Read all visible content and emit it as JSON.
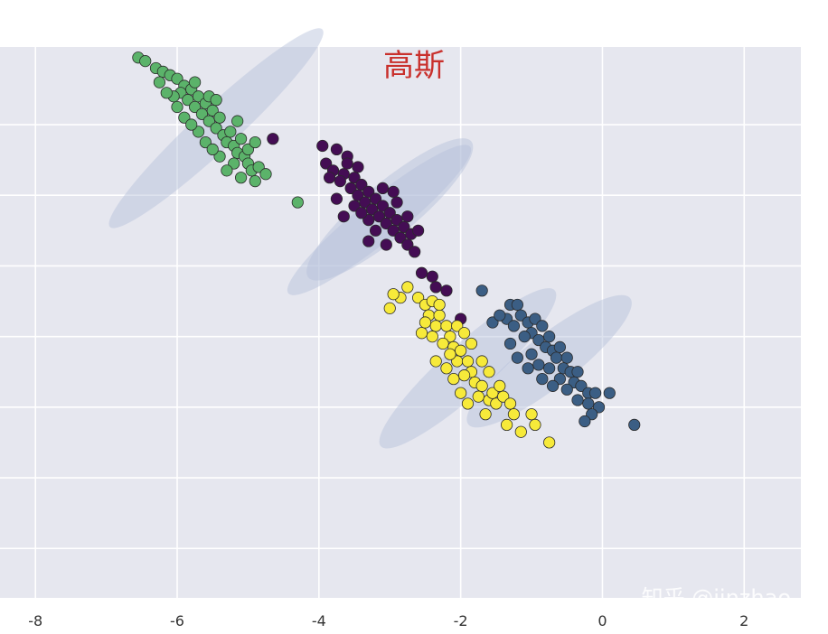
{
  "chart_data": {
    "type": "scatter",
    "title": "高斯",
    "xlabel": "",
    "ylabel": "",
    "xlim": [
      -8.5,
      2.8
    ],
    "ylim": [
      -5.2,
      2.6
    ],
    "x_ticks": [
      -8,
      -6,
      -4,
      -2,
      0,
      2
    ],
    "x_tick_labels": [
      "-8",
      "-6",
      "-4",
      "-2",
      "0",
      "2"
    ],
    "y_grid": [
      -4.5,
      -3.5,
      -2.5,
      -1.5,
      -0.5,
      0.5,
      1.5
    ],
    "grid": true,
    "background": "#e6e7ef",
    "grid_color": "#ffffff",
    "ellipse_color": "#b4bed9",
    "marker_edge_color": "#2a2a2a",
    "series": [
      {
        "color": "#5bb36a",
        "points": [
          [
            -6.55,
            2.45
          ],
          [
            -6.45,
            2.4
          ],
          [
            -6.3,
            2.3
          ],
          [
            -6.2,
            2.25
          ],
          [
            -6.1,
            2.2
          ],
          [
            -6.25,
            2.1
          ],
          [
            -6.0,
            2.15
          ],
          [
            -5.9,
            2.05
          ],
          [
            -5.95,
            1.95
          ],
          [
            -6.05,
            1.9
          ],
          [
            -5.8,
            2.0
          ],
          [
            -5.85,
            1.85
          ],
          [
            -5.7,
            1.9
          ],
          [
            -5.75,
            1.75
          ],
          [
            -5.6,
            1.8
          ],
          [
            -5.65,
            1.65
          ],
          [
            -5.5,
            1.7
          ],
          [
            -5.55,
            1.55
          ],
          [
            -5.4,
            1.6
          ],
          [
            -5.45,
            1.45
          ],
          [
            -5.35,
            1.35
          ],
          [
            -5.25,
            1.4
          ],
          [
            -5.3,
            1.25
          ],
          [
            -5.2,
            1.2
          ],
          [
            -5.1,
            1.3
          ],
          [
            -5.15,
            1.1
          ],
          [
            -5.05,
            1.05
          ],
          [
            -5.0,
            0.95
          ],
          [
            -4.95,
            0.85
          ],
          [
            -4.85,
            0.9
          ],
          [
            -4.75,
            0.8
          ],
          [
            -4.9,
            0.7
          ],
          [
            -5.1,
            0.75
          ],
          [
            -5.2,
            0.95
          ],
          [
            -5.4,
            1.05
          ],
          [
            -5.6,
            1.25
          ],
          [
            -5.7,
            1.4
          ],
          [
            -5.9,
            1.6
          ],
          [
            -6.0,
            1.75
          ],
          [
            -6.15,
            1.95
          ],
          [
            -5.8,
            1.5
          ],
          [
            -5.5,
            1.15
          ],
          [
            -5.3,
            0.85
          ],
          [
            -5.0,
            1.15
          ],
          [
            -4.9,
            1.25
          ],
          [
            -4.3,
            0.4
          ],
          [
            -5.55,
            1.9
          ],
          [
            -5.75,
            2.1
          ],
          [
            -5.45,
            1.85
          ],
          [
            -5.15,
            1.55
          ]
        ]
      },
      {
        "color": "#440d54",
        "points": [
          [
            -4.65,
            1.3
          ],
          [
            -3.95,
            1.2
          ],
          [
            -3.75,
            1.15
          ],
          [
            -3.6,
            1.05
          ],
          [
            -3.9,
            0.95
          ],
          [
            -3.8,
            0.85
          ],
          [
            -3.65,
            0.8
          ],
          [
            -3.5,
            0.75
          ],
          [
            -3.7,
            0.7
          ],
          [
            -3.55,
            0.6
          ],
          [
            -3.4,
            0.65
          ],
          [
            -3.45,
            0.5
          ],
          [
            -3.3,
            0.55
          ],
          [
            -3.35,
            0.4
          ],
          [
            -3.2,
            0.45
          ],
          [
            -3.25,
            0.3
          ],
          [
            -3.1,
            0.35
          ],
          [
            -3.15,
            0.2
          ],
          [
            -3.0,
            0.25
          ],
          [
            -3.05,
            0.1
          ],
          [
            -2.9,
            0.15
          ],
          [
            -2.95,
            0.0
          ],
          [
            -2.8,
            0.05
          ],
          [
            -2.85,
            -0.1
          ],
          [
            -2.7,
            -0.05
          ],
          [
            -2.75,
            -0.2
          ],
          [
            -2.65,
            -0.3
          ],
          [
            -3.6,
            0.95
          ],
          [
            -3.85,
            0.75
          ],
          [
            -3.45,
            0.9
          ],
          [
            -3.1,
            0.6
          ],
          [
            -2.9,
            0.4
          ],
          [
            -2.6,
            0.0
          ],
          [
            -3.3,
            0.15
          ],
          [
            -3.5,
            0.35
          ],
          [
            -3.2,
            0.0
          ],
          [
            -3.05,
            -0.2
          ],
          [
            -3.3,
            -0.15
          ],
          [
            -2.55,
            -0.6
          ],
          [
            -2.4,
            -0.65
          ],
          [
            -2.35,
            -0.8
          ],
          [
            -2.2,
            -0.85
          ],
          [
            -2.0,
            -1.25
          ],
          [
            -3.75,
            0.45
          ],
          [
            -3.65,
            0.2
          ],
          [
            -2.75,
            0.2
          ],
          [
            -2.95,
            0.55
          ],
          [
            -3.4,
            0.25
          ]
        ]
      },
      {
        "color": "#f7ea3a",
        "points": [
          [
            -2.75,
            -0.8
          ],
          [
            -2.85,
            -0.95
          ],
          [
            -2.6,
            -0.95
          ],
          [
            -2.5,
            -1.05
          ],
          [
            -2.4,
            -1.0
          ],
          [
            -2.45,
            -1.2
          ],
          [
            -2.3,
            -1.2
          ],
          [
            -2.35,
            -1.35
          ],
          [
            -2.2,
            -1.35
          ],
          [
            -2.55,
            -1.45
          ],
          [
            -2.15,
            -1.5
          ],
          [
            -2.25,
            -1.6
          ],
          [
            -2.1,
            -1.65
          ],
          [
            -2.0,
            -1.7
          ],
          [
            -2.05,
            -1.85
          ],
          [
            -1.9,
            -1.85
          ],
          [
            -1.85,
            -2.0
          ],
          [
            -1.95,
            -2.05
          ],
          [
            -1.8,
            -2.15
          ],
          [
            -1.7,
            -2.2
          ],
          [
            -1.75,
            -2.35
          ],
          [
            -1.6,
            -2.4
          ],
          [
            -1.5,
            -2.45
          ],
          [
            -1.55,
            -2.3
          ],
          [
            -1.4,
            -2.35
          ],
          [
            -1.3,
            -2.45
          ],
          [
            -1.25,
            -2.6
          ],
          [
            -1.0,
            -2.6
          ],
          [
            -0.95,
            -2.75
          ],
          [
            -1.35,
            -2.75
          ],
          [
            -1.15,
            -2.85
          ],
          [
            -0.75,
            -3.0
          ],
          [
            -2.35,
            -1.85
          ],
          [
            -2.2,
            -1.95
          ],
          [
            -2.1,
            -2.1
          ],
          [
            -2.0,
            -2.3
          ],
          [
            -1.9,
            -2.45
          ],
          [
            -1.65,
            -2.6
          ],
          [
            -2.3,
            -1.05
          ],
          [
            -2.05,
            -1.35
          ],
          [
            -1.85,
            -1.6
          ],
          [
            -1.95,
            -1.45
          ],
          [
            -2.4,
            -1.5
          ],
          [
            -2.5,
            -1.3
          ],
          [
            -1.7,
            -1.85
          ],
          [
            -1.6,
            -2.0
          ],
          [
            -2.15,
            -1.75
          ],
          [
            -1.45,
            -2.2
          ],
          [
            -3.0,
            -1.1
          ],
          [
            -2.95,
            -0.9
          ]
        ]
      },
      {
        "color": "#3b5e84",
        "points": [
          [
            -1.7,
            -0.85
          ],
          [
            -1.3,
            -1.05
          ],
          [
            -1.2,
            -1.05
          ],
          [
            -1.35,
            -1.25
          ],
          [
            -1.15,
            -1.2
          ],
          [
            -1.05,
            -1.3
          ],
          [
            -1.25,
            -1.35
          ],
          [
            -0.95,
            -1.25
          ],
          [
            -0.85,
            -1.35
          ],
          [
            -1.0,
            -1.45
          ],
          [
            -0.9,
            -1.55
          ],
          [
            -0.75,
            -1.5
          ],
          [
            -0.8,
            -1.65
          ],
          [
            -0.7,
            -1.7
          ],
          [
            -0.6,
            -1.65
          ],
          [
            -0.65,
            -1.8
          ],
          [
            -0.5,
            -1.8
          ],
          [
            -0.55,
            -1.95
          ],
          [
            -0.45,
            -2.0
          ],
          [
            -0.35,
            -2.0
          ],
          [
            -0.4,
            -2.15
          ],
          [
            -0.3,
            -2.2
          ],
          [
            -0.2,
            -2.3
          ],
          [
            -0.1,
            -2.3
          ],
          [
            -0.2,
            -2.45
          ],
          [
            -0.05,
            -2.5
          ],
          [
            -0.15,
            -2.6
          ],
          [
            0.1,
            -2.3
          ],
          [
            0.45,
            -2.75
          ],
          [
            -1.55,
            -1.3
          ],
          [
            -1.45,
            -1.2
          ],
          [
            -1.1,
            -1.5
          ],
          [
            -1.3,
            -1.6
          ],
          [
            -1.0,
            -1.75
          ],
          [
            -0.9,
            -1.9
          ],
          [
            -0.75,
            -1.95
          ],
          [
            -0.6,
            -2.1
          ],
          [
            -0.5,
            -2.25
          ],
          [
            -0.35,
            -2.4
          ],
          [
            -0.25,
            -2.7
          ],
          [
            -0.85,
            -2.1
          ],
          [
            -0.7,
            -2.2
          ],
          [
            -1.2,
            -1.8
          ],
          [
            -1.05,
            -1.95
          ]
        ]
      }
    ],
    "ellipses": [
      {
        "cx": -5.45,
        "cy": 1.45,
        "rx": 2.05,
        "ry": 0.3,
        "angle_deg": 43
      },
      {
        "cx": -3.15,
        "cy": 0.15,
        "rx": 1.65,
        "ry": 0.3,
        "angle_deg": 39
      },
      {
        "cx": -3.0,
        "cy": 0.3,
        "rx": 1.5,
        "ry": 0.38,
        "angle_deg": 40
      },
      {
        "cx": -1.9,
        "cy": -1.95,
        "rx": 1.65,
        "ry": 0.35,
        "angle_deg": 42
      },
      {
        "cx": -0.75,
        "cy": -1.85,
        "rx": 1.45,
        "ry": 0.36,
        "angle_deg": 38
      }
    ]
  },
  "watermark": "知乎 @jinzhao"
}
